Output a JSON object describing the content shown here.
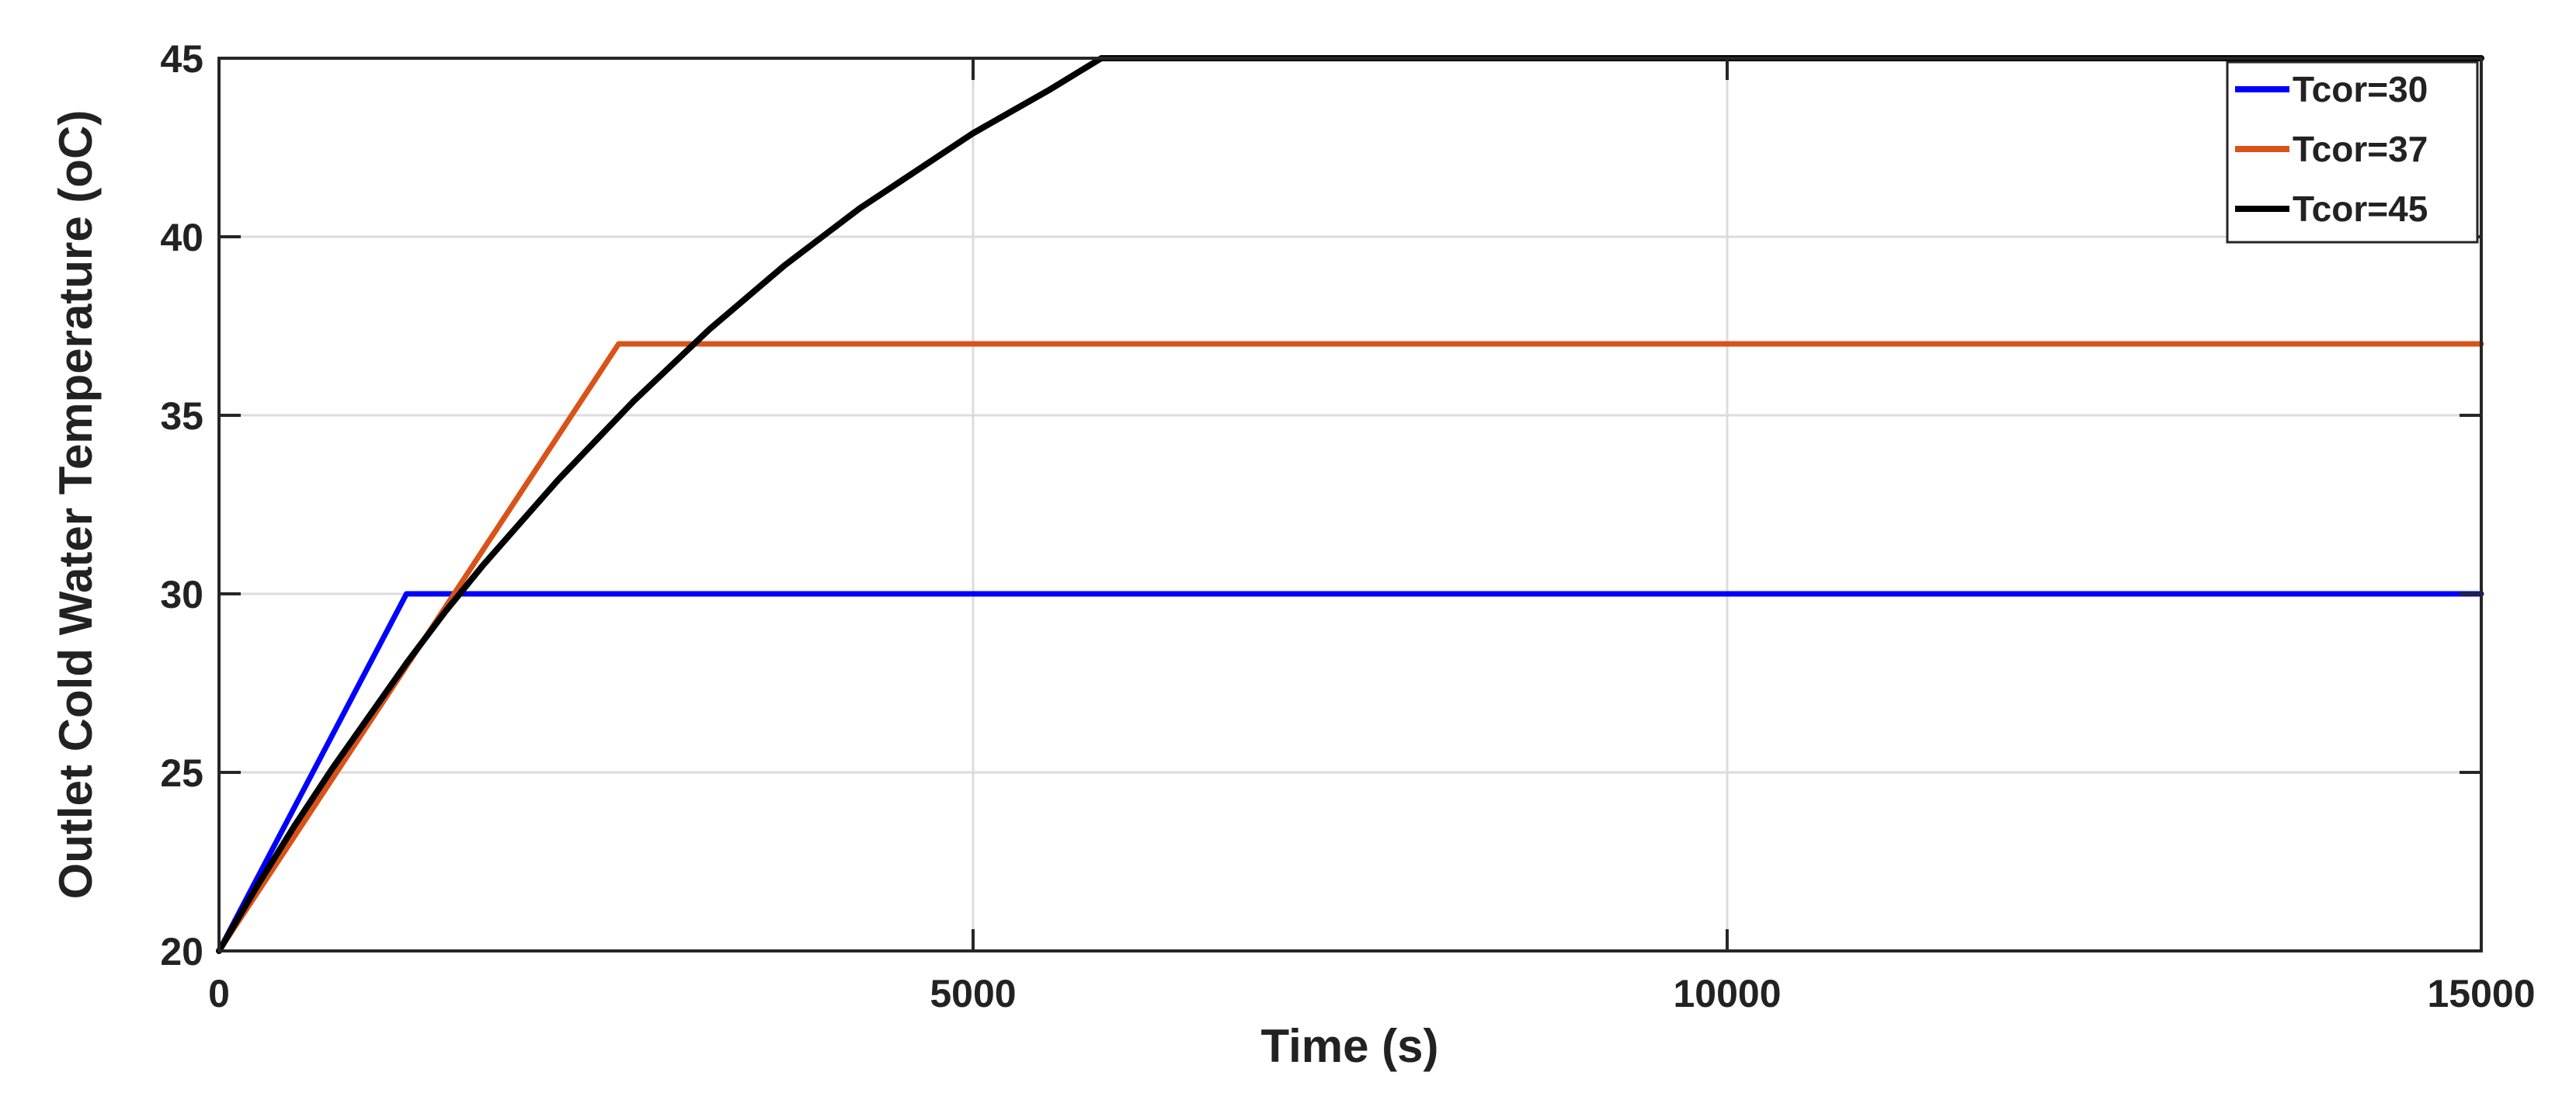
{
  "chart_data": {
    "type": "line",
    "title": "",
    "xlabel": "Time (s)",
    "ylabel": "Outlet Cold Water Temperature (",
    "ylabel_unit": "oC)",
    "xlim": [
      0,
      15000
    ],
    "ylim": [
      20,
      45
    ],
    "xticks": [
      "0",
      "5000",
      "10000",
      "15000"
    ],
    "yticks": [
      "20",
      "25",
      "30",
      "35",
      "40",
      "45"
    ],
    "grid": true,
    "legend_position": "top-right",
    "series": [
      {
        "name": "Tcor=30",
        "color": "#0000ff",
        "points": [
          [
            0,
            20
          ],
          [
            1243,
            30
          ],
          [
            15000,
            30
          ]
        ]
      },
      {
        "name": "Tcor=37",
        "color": "#d95319",
        "points": [
          [
            0,
            20
          ],
          [
            2650,
            37
          ],
          [
            15000,
            37
          ]
        ]
      },
      {
        "name": "Tcor=45",
        "color": "#000000",
        "points": [
          [
            0,
            20
          ],
          [
            250,
            21.8
          ],
          [
            500,
            23.5
          ],
          [
            750,
            25.1
          ],
          [
            1000,
            26.6
          ],
          [
            1250,
            28.1
          ],
          [
            1500,
            29.5
          ],
          [
            1750,
            30.8
          ],
          [
            2000,
            32.0
          ],
          [
            2250,
            33.2
          ],
          [
            2500,
            34.3
          ],
          [
            2750,
            35.4
          ],
          [
            3000,
            36.4
          ],
          [
            3250,
            37.4
          ],
          [
            3500,
            38.3
          ],
          [
            3750,
            39.2
          ],
          [
            4000,
            40.0
          ],
          [
            4250,
            40.8
          ],
          [
            4500,
            41.5
          ],
          [
            4750,
            42.2
          ],
          [
            5000,
            42.9
          ],
          [
            5250,
            43.5
          ],
          [
            5500,
            44.1
          ],
          [
            5850,
            45
          ],
          [
            15000,
            45
          ]
        ]
      }
    ]
  }
}
